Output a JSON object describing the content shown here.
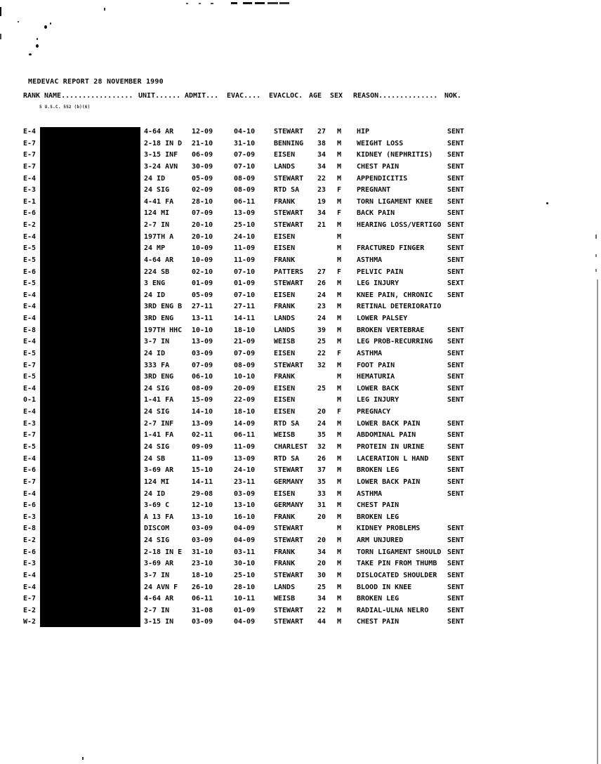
{
  "document": {
    "title": "MEDEVAC REPORT 28 NOVEMBER 1990",
    "privacy_statute": "5 U.S.C. 552 (b)(6)",
    "headers": {
      "rank": "RANK",
      "name": "NAME.................",
      "unit": "UNIT......",
      "admit": "ADMIT...",
      "evac": "EVAC....",
      "evacloc": "EVACLOC.",
      "age": "AGE",
      "sex": "SEX",
      "reason": "REASON..............",
      "nok": "NOK."
    },
    "rows": [
      {
        "rank": "E-4",
        "unit": "4-64 AR",
        "admit": "12-09",
        "evac": "04-10",
        "evacloc": "STEWART",
        "age": "27",
        "sex": "M",
        "reason": "HIP",
        "nok": "SENT"
      },
      {
        "rank": "E-7",
        "unit": "2-18 IN D",
        "admit": "21-10",
        "evac": "31-10",
        "evacloc": "BENNING",
        "age": "38",
        "sex": "M",
        "reason": "WEIGHT LOSS",
        "nok": "SENT"
      },
      {
        "rank": "E-7",
        "unit": "3-15 INF",
        "admit": "06-09",
        "evac": "07-09",
        "evacloc": "EISEN",
        "age": "34",
        "sex": "M",
        "reason": "KIDNEY (NEPHRITIS)",
        "nok": "SENT"
      },
      {
        "rank": "E-7",
        "unit": "3-24 AVN",
        "admit": "30-09",
        "evac": "07-10",
        "evacloc": "LANDS",
        "age": "34",
        "sex": "M",
        "reason": "CHEST PAIN",
        "nok": "SENT"
      },
      {
        "rank": "E-4",
        "unit": "24 ID",
        "admit": "05-09",
        "evac": "08-09",
        "evacloc": "STEWART",
        "age": "22",
        "sex": "M",
        "reason": "APPENDICITIS",
        "nok": "SENT"
      },
      {
        "rank": "E-3",
        "unit": "24 SIG",
        "admit": "02-09",
        "evac": "08-09",
        "evacloc": "RTD SA",
        "age": "23",
        "sex": "F",
        "reason": "PREGNANT",
        "nok": "SENT"
      },
      {
        "rank": "E-1",
        "unit": "4-41 FA",
        "admit": "28-10",
        "evac": "06-11",
        "evacloc": "FRANK",
        "age": "19",
        "sex": "M",
        "reason": "TORN LIGAMENT KNEE",
        "nok": "SENT"
      },
      {
        "rank": "E-6",
        "unit": "124 MI",
        "admit": "07-09",
        "evac": "13-09",
        "evacloc": "STEWART",
        "age": "34",
        "sex": "F",
        "reason": "BACK PAIN",
        "nok": "SENT"
      },
      {
        "rank": "E-2",
        "unit": "2-7 IN",
        "admit": "20-10",
        "evac": "25-10",
        "evacloc": "STEWART",
        "age": "21",
        "sex": "M",
        "reason": "HEARING LOSS/VERTIGO",
        "nok": "SENT"
      },
      {
        "rank": "E-4",
        "unit": "197TH A",
        "admit": "20-10",
        "evac": "24-10",
        "evacloc": "EISEN",
        "age": "",
        "sex": "M",
        "reason": "",
        "nok": "SENT"
      },
      {
        "rank": "E-5",
        "unit": "24 MP",
        "admit": "10-09",
        "evac": "11-09",
        "evacloc": "EISEN",
        "age": "",
        "sex": "M",
        "reason": "FRACTURED FINGER",
        "nok": "SENT"
      },
      {
        "rank": "E-5",
        "unit": "4-64 AR",
        "admit": "10-09",
        "evac": "11-09",
        "evacloc": "FRANK",
        "age": "",
        "sex": "M",
        "reason": "ASTHMA",
        "nok": "SENT"
      },
      {
        "rank": "E-6",
        "unit": "224 SB",
        "admit": "02-10",
        "evac": "07-10",
        "evacloc": "PATTERS",
        "age": "27",
        "sex": "F",
        "reason": "PELVIC PAIN",
        "nok": "SENT"
      },
      {
        "rank": "E-5",
        "unit": "3 ENG",
        "admit": "01-09",
        "evac": "01-09",
        "evacloc": "STEWART",
        "age": "26",
        "sex": "M",
        "reason": "LEG INJURY",
        "nok": "SEXT"
      },
      {
        "rank": "E-4",
        "unit": "24 ID",
        "admit": "05-09",
        "evac": "07-10",
        "evacloc": "EISEN",
        "age": "24",
        "sex": "M",
        "reason": "KNEE PAIN, CHRONIC",
        "nok": "SENT"
      },
      {
        "rank": "E-4",
        "unit": "3RD ENG B",
        "admit": "27-11",
        "evac": "27-11",
        "evacloc": "FRANK",
        "age": "23",
        "sex": "M",
        "reason": "RETINAL DETERIORATIO",
        "nok": ""
      },
      {
        "rank": "E-4",
        "unit": "3RD ENG",
        "admit": "13-11",
        "evac": "14-11",
        "evacloc": "LANDS",
        "age": "24",
        "sex": "M",
        "reason": "LOWER PALSEY",
        "nok": ""
      },
      {
        "rank": "E-8",
        "unit": "197TH HHC",
        "admit": "10-10",
        "evac": "18-10",
        "evacloc": "LANDS",
        "age": "39",
        "sex": "M",
        "reason": "BROKEN VERTEBRAE",
        "nok": "SENT"
      },
      {
        "rank": "E-4",
        "unit": "3-7 IN",
        "admit": "13-09",
        "evac": "21-09",
        "evacloc": "WEISB",
        "age": "25",
        "sex": "M",
        "reason": "LEG PROB-RECURRING",
        "nok": "SENT"
      },
      {
        "rank": "E-5",
        "unit": "24 ID",
        "admit": "03-09",
        "evac": "07-09",
        "evacloc": "EISEN",
        "age": "22",
        "sex": "F",
        "reason": "ASTHMA",
        "nok": "SENT"
      },
      {
        "rank": "E-7",
        "unit": "333 FA",
        "admit": "07-09",
        "evac": "08-09",
        "evacloc": "STEWART",
        "age": "32",
        "sex": "M",
        "reason": "FOOT PAIN",
        "nok": "SENT"
      },
      {
        "rank": "E-5",
        "unit": "3RD ENG",
        "admit": "06-10",
        "evac": "10-10",
        "evacloc": "FRANK",
        "age": "",
        "sex": "M",
        "reason": "HEMATURIA",
        "nok": "SENT"
      },
      {
        "rank": "E-4",
        "unit": "24 SIG",
        "admit": "08-09",
        "evac": "20-09",
        "evacloc": "EISEN",
        "age": "25",
        "sex": "M",
        "reason": "LOWER BACK",
        "nok": "SENT"
      },
      {
        "rank": "0-1",
        "unit": "1-41 FA",
        "admit": "15-09",
        "evac": "22-09",
        "evacloc": "EISEN",
        "age": "",
        "sex": "M",
        "reason": "LEG INJURY",
        "nok": "SENT"
      },
      {
        "rank": "E-4",
        "unit": "24 SIG",
        "admit": "14-10",
        "evac": "18-10",
        "evacloc": "EISEN",
        "age": "20",
        "sex": "F",
        "reason": "PREGNACY",
        "nok": ""
      },
      {
        "rank": "E-3",
        "unit": "2-7 INF",
        "admit": "13-09",
        "evac": "14-09",
        "evacloc": "RTD SA",
        "age": "24",
        "sex": "M",
        "reason": "LOWER BACK PAIN",
        "nok": "SENT"
      },
      {
        "rank": "E-7",
        "unit": "1-41 FA",
        "admit": "02-11",
        "evac": "06-11",
        "evacloc": "WEISB",
        "age": "35",
        "sex": "M",
        "reason": "ABDOMINAL PAIN",
        "nok": "SENT"
      },
      {
        "rank": "E-5",
        "unit": "24 SIG",
        "admit": "09-09",
        "evac": "11-09",
        "evacloc": "CHARLEST",
        "age": "32",
        "sex": "M",
        "reason": "PROTEIN IN URINE",
        "nok": "SENT"
      },
      {
        "rank": "E-4",
        "unit": "24 SB",
        "admit": "11-09",
        "evac": "13-09",
        "evacloc": "RTD SA",
        "age": "26",
        "sex": "M",
        "reason": "LACERATION L HAND",
        "nok": "SENT"
      },
      {
        "rank": "E-6",
        "unit": "3-69 AR",
        "admit": "15-10",
        "evac": "24-10",
        "evacloc": "STEWART",
        "age": "37",
        "sex": "M",
        "reason": "BROKEN LEG",
        "nok": "SENT"
      },
      {
        "rank": "E-7",
        "unit": "124 MI",
        "admit": "14-11",
        "evac": "23-11",
        "evacloc": "GERMANY",
        "age": "35",
        "sex": "M",
        "reason": "LOWER BACK PAIN",
        "nok": "SENT"
      },
      {
        "rank": "E-4",
        "unit": "24 ID",
        "admit": "29-08",
        "evac": "03-09",
        "evacloc": "EISEN",
        "age": "33",
        "sex": "M",
        "reason": "ASTHMA",
        "nok": "SENT"
      },
      {
        "rank": "E-6",
        "unit": "3-69 C",
        "admit": "12-10",
        "evac": "13-10",
        "evacloc": "GERMANY",
        "age": "31",
        "sex": "M",
        "reason": "CHEST PAIN",
        "nok": ""
      },
      {
        "rank": "E-3",
        "unit": "A 13 FA",
        "admit": "13-10",
        "evac": "16-10",
        "evacloc": "FRANK",
        "age": "20",
        "sex": "M",
        "reason": "BROKEN LEG",
        "nok": ""
      },
      {
        "rank": "E-8",
        "unit": "DISCOM",
        "admit": "03-09",
        "evac": "04-09",
        "evacloc": "STEWART",
        "age": "",
        "sex": "M",
        "reason": "KIDNEY PROBLEMS",
        "nok": "SENT"
      },
      {
        "rank": "E-2",
        "unit": "24 SIG",
        "admit": "03-09",
        "evac": "04-09",
        "evacloc": "STEWART",
        "age": "20",
        "sex": "M",
        "reason": "ARM UNJURED",
        "nok": "SENT"
      },
      {
        "rank": "E-6",
        "unit": "2-18 IN E",
        "admit": "31-10",
        "evac": "03-11",
        "evacloc": "FRANK",
        "age": "34",
        "sex": "M",
        "reason": "TORN LIGAMENT SHOULD",
        "nok": "SENT"
      },
      {
        "rank": "E-3",
        "unit": "3-69 AR",
        "admit": "23-10",
        "evac": "30-10",
        "evacloc": "FRANK",
        "age": "20",
        "sex": "M",
        "reason": "TAKE PIN FROM THUMB",
        "nok": "SENT"
      },
      {
        "rank": "E-4",
        "unit": "3-7 IN",
        "admit": "18-10",
        "evac": "25-10",
        "evacloc": "STEWART",
        "age": "30",
        "sex": "M",
        "reason": "DISLOCATED SHOULDER",
        "nok": "SENT"
      },
      {
        "rank": "E-4",
        "unit": "24 AVN F",
        "admit": "26-10",
        "evac": "28-10",
        "evacloc": "LANDS",
        "age": "25",
        "sex": "M",
        "reason": "BLOOD IN KNEE",
        "nok": "SENT"
      },
      {
        "rank": "E-7",
        "unit": "4-64 AR",
        "admit": "06-11",
        "evac": "10-11",
        "evacloc": "WEISB",
        "age": "34",
        "sex": "M",
        "reason": "BROKEN LEG",
        "nok": "SENT"
      },
      {
        "rank": "E-2",
        "unit": "2-7 IN",
        "admit": "31-08",
        "evac": "01-09",
        "evacloc": "STEWART",
        "age": "22",
        "sex": "M",
        "reason": "RADIAL-ULNA NELRO",
        "nok": "SENT"
      },
      {
        "rank": "W-2",
        "unit": "3-15 IN",
        "admit": "03-09",
        "evac": "04-09",
        "evacloc": "STEWART",
        "age": "44",
        "sex": "M",
        "reason": "CHEST PAIN",
        "nok": "SENT"
      }
    ]
  }
}
